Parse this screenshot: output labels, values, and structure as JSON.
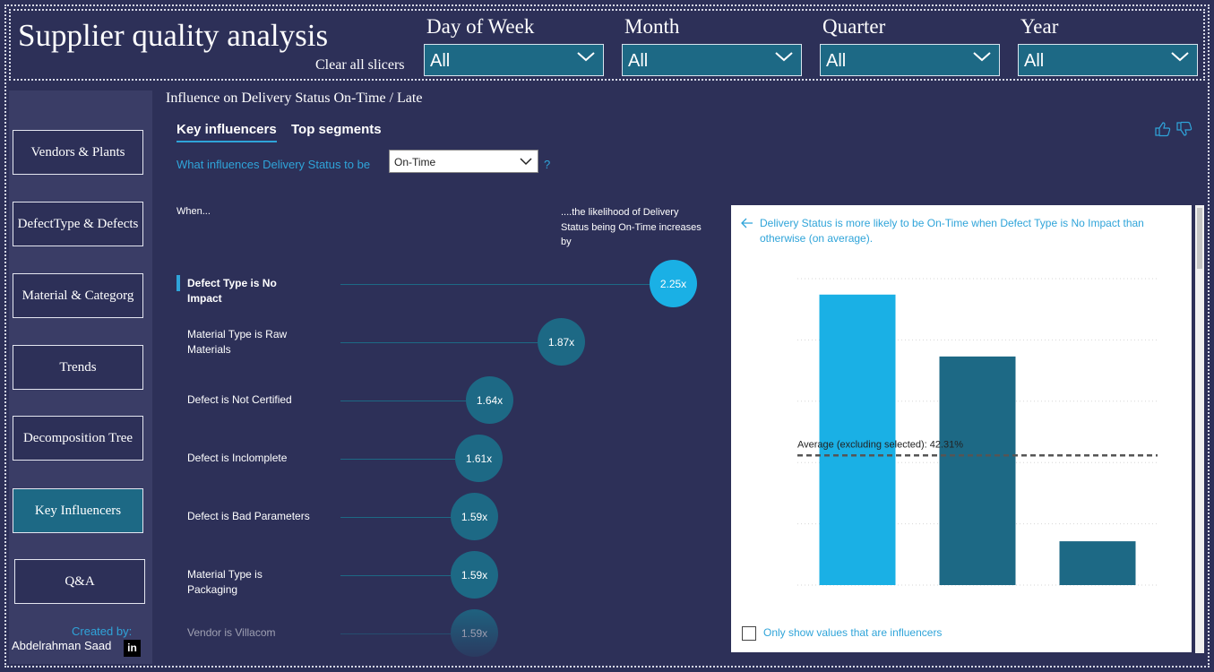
{
  "header": {
    "title": "Supplier quality analysis",
    "clear_label": "Clear all slicers"
  },
  "slicers": [
    {
      "label": "Day of Week",
      "value": "All"
    },
    {
      "label": "Month",
      "value": "All"
    },
    {
      "label": "Quarter",
      "value": "All"
    },
    {
      "label": "Year",
      "value": "All"
    }
  ],
  "nav": {
    "items": [
      {
        "label": "Vendors & Plants"
      },
      {
        "label": "DefectType & Defects"
      },
      {
        "label": "Material & Categorg"
      },
      {
        "label": "Trends"
      },
      {
        "label": "Decomposition Tree"
      },
      {
        "label": "Key Influencers"
      },
      {
        "label": "Q&A"
      }
    ],
    "active": "Key Influencers"
  },
  "credit": {
    "created_by": "Created by:",
    "author": "Abdelrahman Saad",
    "linkedin_icon": "in"
  },
  "visual": {
    "title": "Influence on Delivery Status On-Time / Late",
    "tabs": [
      "Key influencers",
      "Top segments"
    ],
    "active_tab": "Key influencers",
    "question": "What influences Delivery Status to be",
    "target_value": "On-Time",
    "help": "?",
    "when_header": "When...",
    "likelihood_header": "....the likelihood of Delivery Status being On-Time increases by",
    "feedback_icons": [
      "thumbs-up-icon",
      "thumbs-down-icon"
    ]
  },
  "influencers": [
    {
      "label": "Defect Type is No Impact",
      "factor": "2.25x",
      "selected": true
    },
    {
      "label": "Material Type is Raw Materials",
      "factor": "1.87x",
      "selected": false
    },
    {
      "label": "Defect is Not Certified",
      "factor": "1.64x",
      "selected": false
    },
    {
      "label": "Defect is Inclomplete",
      "factor": "1.61x",
      "selected": false
    },
    {
      "label": "Defect is Bad Parameters",
      "factor": "1.59x",
      "selected": false
    },
    {
      "label": "Material Type is Packaging",
      "factor": "1.59x",
      "selected": false
    },
    {
      "label": "Vendor is Villacom",
      "factor": "1.59x",
      "selected": false
    }
  ],
  "detail": {
    "description": "Delivery Status is more likely to be On-Time when Defect Type is No Impact than otherwise (on average).",
    "average_label": "Average (excluding selected): 42.31%",
    "checkbox_label": "Only show values that are influencers"
  },
  "chart_data": {
    "type": "bar",
    "categories": [
      "",
      "",
      ""
    ],
    "values": [
      94.8,
      74.6,
      14.3
    ],
    "colors": [
      "#1ab0e5",
      "#1d6985",
      "#1d6985"
    ],
    "reference_line": 42.31,
    "ylim": [
      0,
      100
    ],
    "grid": true
  }
}
